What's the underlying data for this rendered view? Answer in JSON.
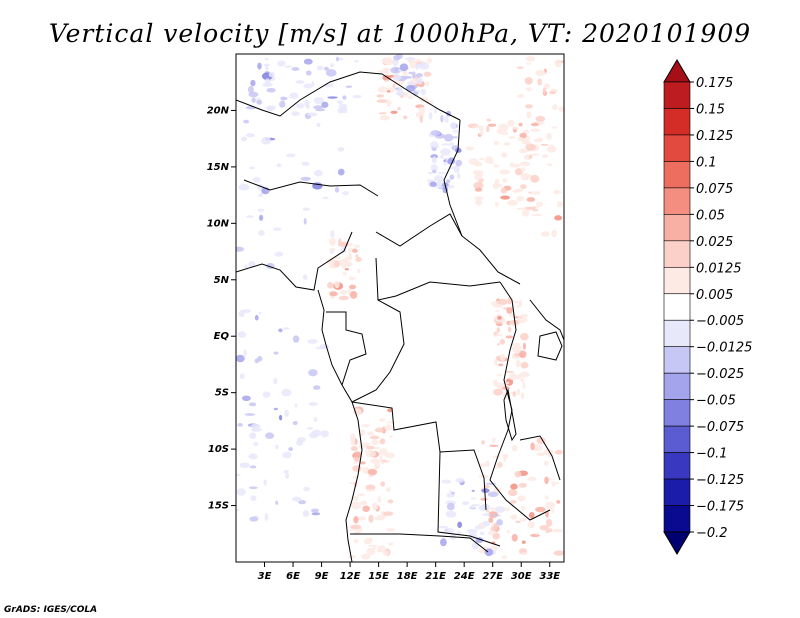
{
  "chart_data": {
    "type": "heatmap",
    "title": "Vertical velocity [m/s] at 1000hPa, VT: 2020101909",
    "xlabel": "",
    "ylabel": "",
    "xlim_deg_east": [
      0,
      34.5
    ],
    "ylim_deg_north": [
      -20,
      25
    ],
    "x_ticks": [
      "3E",
      "6E",
      "9E",
      "12E",
      "15E",
      "18E",
      "21E",
      "24E",
      "27E",
      "30E",
      "33E"
    ],
    "x_tick_values": [
      3,
      6,
      9,
      12,
      15,
      18,
      21,
      24,
      27,
      30,
      33
    ],
    "y_ticks": [
      "20N",
      "15N",
      "10N",
      "5N",
      "EQ",
      "5S",
      "10S",
      "15S"
    ],
    "y_tick_values": [
      20,
      15,
      10,
      5,
      0,
      -5,
      -10,
      -15
    ],
    "colorbar": {
      "labels": [
        "0.175",
        "0.15",
        "0.125",
        "0.1",
        "0.075",
        "0.05",
        "0.025",
        "0.0125",
        "0.005",
        "−0.005",
        "−0.0125",
        "−0.025",
        "−0.05",
        "−0.075",
        "−0.1",
        "−0.125",
        "−0.175",
        "−0.2"
      ],
      "colors": [
        "#a50f15",
        "#bd1c20",
        "#d42d28",
        "#e34a3f",
        "#ed6d5e",
        "#f38e80",
        "#f8b0a5",
        "#fbd0c8",
        "#fdeae5",
        "#ffffff",
        "#e8e8fb",
        "#c7c7f5",
        "#a4a4ec",
        "#8080e0",
        "#5c5cd2",
        "#3838c0",
        "#1c1cab",
        "#0a0a90",
        "#000070"
      ],
      "extend": "both"
    },
    "credit": "GrADS: IGES/COLA"
  }
}
